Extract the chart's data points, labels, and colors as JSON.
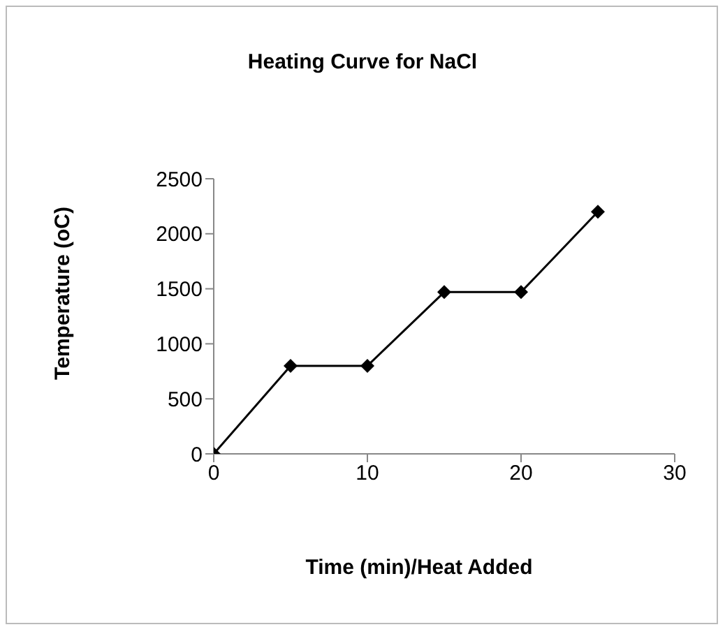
{
  "chart_data": {
    "type": "line",
    "title": "Heating Curve for NaCl",
    "xlabel": "Time (min)/Heat Added",
    "ylabel": "Temperature (oC)",
    "x": [
      0,
      5,
      10,
      15,
      20,
      25
    ],
    "series": [
      {
        "color": "#000000",
        "values": [
          0,
          800,
          800,
          1470,
          1470,
          2200
        ]
      }
    ],
    "xlim": [
      0,
      30
    ],
    "xticks": [
      0,
      10,
      20,
      30
    ],
    "ylim": [
      0,
      2500
    ],
    "yticks": [
      0,
      500,
      1000,
      1500,
      2000,
      2500
    ],
    "grid": false,
    "legend": false,
    "marker": "diamond",
    "line_style": "solid"
  }
}
